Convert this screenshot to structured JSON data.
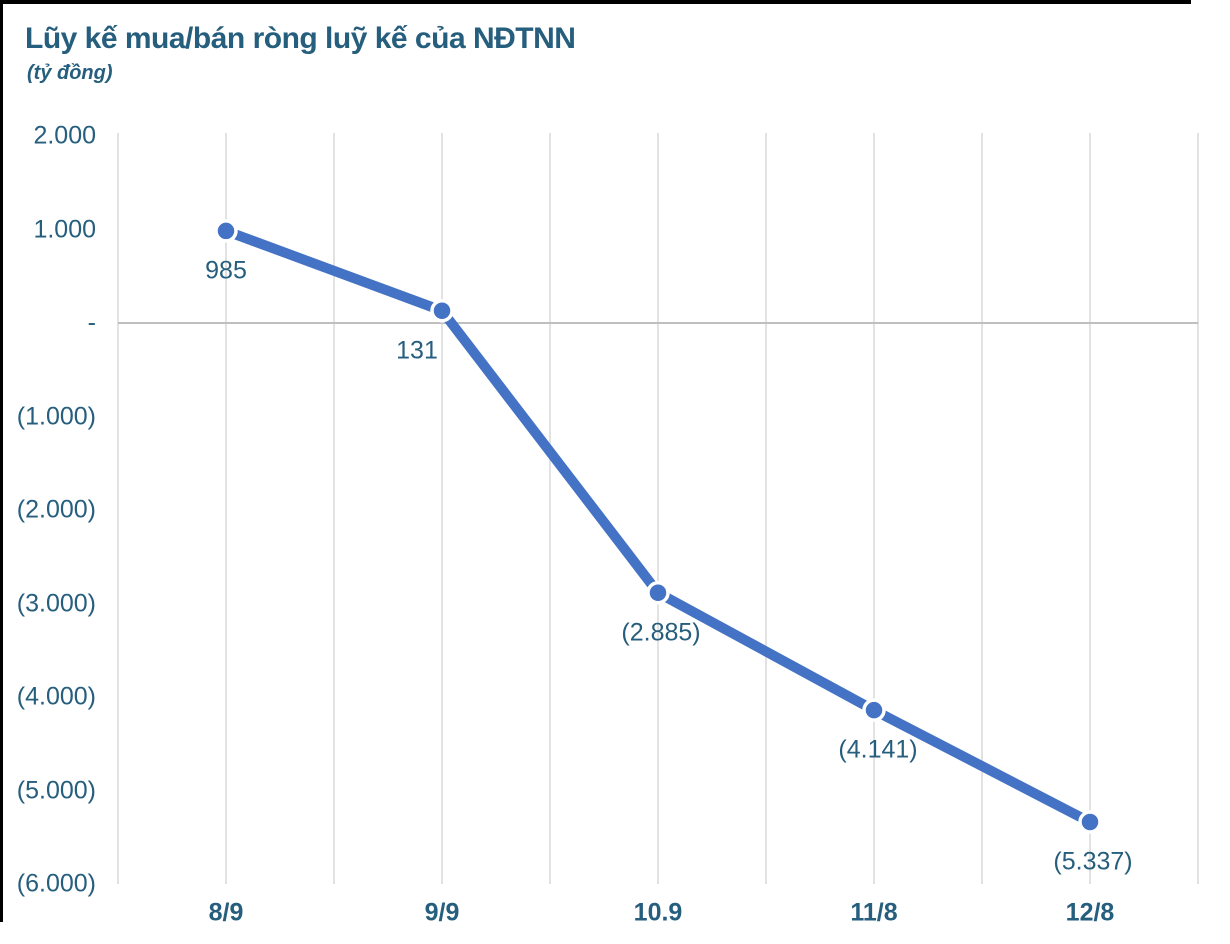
{
  "chart_data": {
    "type": "line",
    "title": "Lũy kế mua/bán ròng luỹ kế của NĐTNN",
    "unit_label": "(tỷ đồng)",
    "categories": [
      "8/9",
      "9/9",
      "10.9",
      "11/8",
      "12/8"
    ],
    "values": [
      985,
      131,
      -2885,
      -4141,
      -5337
    ],
    "data_labels": [
      "985",
      "131",
      "(2.885)",
      "(4.141)",
      "(5.337)"
    ],
    "data_label_dx": [
      0,
      -25,
      3,
      4,
      3
    ],
    "y_ticks": [
      2000,
      1000,
      0,
      -1000,
      -2000,
      -3000,
      -4000,
      -5000,
      -6000
    ],
    "y_tick_labels": [
      "2.000",
      "1.000",
      "-",
      "(1.000)",
      "(2.000)",
      "(3.000)",
      "(4.000)",
      "(5.000)",
      "(6.000)"
    ],
    "ylim": [
      -6000,
      2000
    ],
    "xlabel": "",
    "ylabel": "tỷ đồng",
    "grid": "vertical-major-and-mid, single horizontal zero line",
    "legend": "none",
    "colors": {
      "line": "#4472C4",
      "marker": "#4472C4",
      "marker_ring": "#ffffff",
      "title_text": "#265E7D",
      "axis_text": "#265E7D",
      "label_text": "#265E7D",
      "gridline": "#D9D9D9",
      "zero_line": "#BFBFBF",
      "edge_border": "#000000",
      "background": "#ffffff"
    }
  }
}
